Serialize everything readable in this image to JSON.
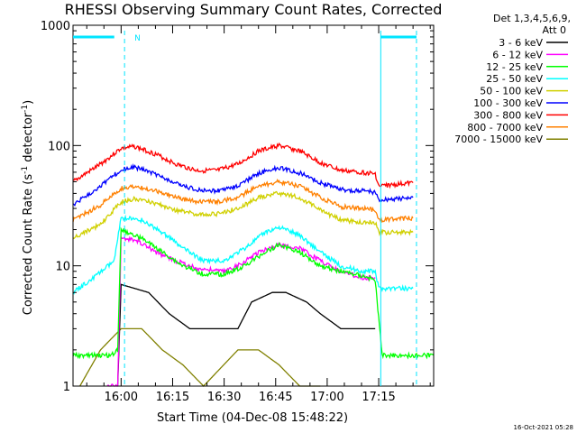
{
  "chart_data": {
    "type": "line",
    "title": "RHESSI Observing Summary Count Rates, Corrected",
    "xlabel": "Start Time (04-Dec-08 15:48:22)",
    "ylabel_main": "Corrected Count Rate (s",
    "ylabel_sup1": "-1",
    "ylabel_mid": " detector",
    "ylabel_sup2": "-1",
    "ylabel_end": ")",
    "yscale": "log",
    "ylim": [
      1,
      1000
    ],
    "xlim_minutes": [
      -14,
      91
    ],
    "y_ticks": [
      {
        "value": 1,
        "label": "1"
      },
      {
        "value": 10,
        "label": "10"
      },
      {
        "value": 100,
        "label": "100"
      },
      {
        "value": 1000,
        "label": "1000"
      }
    ],
    "x_ticks": [
      {
        "minute": 0,
        "label": "16:00"
      },
      {
        "minute": 15,
        "label": "16:15"
      },
      {
        "minute": 30,
        "label": "16:30"
      },
      {
        "minute": 45,
        "label": "16:45"
      },
      {
        "minute": 60,
        "label": "17:00"
      },
      {
        "minute": 75,
        "label": "17:15"
      }
    ],
    "legend": {
      "header1": "Det 1,3,4,5,6,9,",
      "header2": "Att 0",
      "placement": "right"
    },
    "annotation": {
      "label": "N",
      "minute": 6.5
    },
    "timestamp": "16-Oct-2021 05:28",
    "series": [
      {
        "name": "3 - 6 keV",
        "color": "#000000",
        "points": [
          [
            -1,
            1
          ],
          [
            0,
            7
          ],
          [
            8,
            6
          ],
          [
            14,
            4
          ],
          [
            20,
            3
          ],
          [
            30,
            3
          ],
          [
            34,
            3
          ],
          [
            38,
            5
          ],
          [
            44,
            6
          ],
          [
            48,
            6
          ],
          [
            54,
            5
          ],
          [
            58,
            4
          ],
          [
            64,
            3
          ],
          [
            74,
            3
          ]
        ]
      },
      {
        "name": "6 - 12 keV",
        "color": "#ff00ff",
        "points": [
          [
            -4,
            1
          ],
          [
            -3,
            1
          ],
          [
            -1,
            1
          ],
          [
            0,
            17
          ],
          [
            5,
            16
          ],
          [
            10,
            13
          ],
          [
            16,
            11
          ],
          [
            22,
            9.5
          ],
          [
            30,
            9
          ],
          [
            34,
            10
          ],
          [
            40,
            13
          ],
          [
            46,
            15
          ],
          [
            52,
            14
          ],
          [
            58,
            11
          ],
          [
            64,
            9
          ],
          [
            70,
            8
          ],
          [
            74,
            8
          ]
        ]
      },
      {
        "name": "12 - 25 keV",
        "color": "#00ff00",
        "points": [
          [
            -14,
            1.8
          ],
          [
            -3,
            1.8
          ],
          [
            -1,
            2
          ],
          [
            0,
            20
          ],
          [
            6,
            17
          ],
          [
            12,
            13
          ],
          [
            18,
            10
          ],
          [
            24,
            8.5
          ],
          [
            30,
            8.5
          ],
          [
            36,
            10
          ],
          [
            42,
            13
          ],
          [
            46,
            15
          ],
          [
            52,
            13
          ],
          [
            58,
            10
          ],
          [
            64,
            9
          ],
          [
            72,
            8
          ],
          [
            74,
            7.5
          ],
          [
            76,
            1.8
          ],
          [
            91,
            1.8
          ]
        ]
      },
      {
        "name": "25 - 50 keV",
        "color": "#00ffff",
        "points": [
          [
            -14,
            6
          ],
          [
            -8,
            8
          ],
          [
            -2,
            11
          ],
          [
            0,
            25
          ],
          [
            6,
            24
          ],
          [
            12,
            19
          ],
          [
            18,
            14
          ],
          [
            24,
            11
          ],
          [
            30,
            11
          ],
          [
            36,
            14
          ],
          [
            42,
            19
          ],
          [
            46,
            21
          ],
          [
            52,
            18
          ],
          [
            58,
            13
          ],
          [
            64,
            10
          ],
          [
            70,
            9
          ],
          [
            74,
            9
          ],
          [
            75,
            6.5
          ],
          [
            85,
            6.5
          ]
        ]
      },
      {
        "name": "50 - 100 keV",
        "color": "#d0d000",
        "points": [
          [
            -14,
            17
          ],
          [
            -6,
            22
          ],
          [
            0,
            34
          ],
          [
            4,
            36
          ],
          [
            10,
            33
          ],
          [
            16,
            29
          ],
          [
            22,
            27
          ],
          [
            28,
            27
          ],
          [
            34,
            30
          ],
          [
            40,
            37
          ],
          [
            46,
            40
          ],
          [
            52,
            37
          ],
          [
            58,
            29
          ],
          [
            64,
            24
          ],
          [
            70,
            23
          ],
          [
            74,
            23
          ],
          [
            75,
            19
          ],
          [
            85,
            19
          ]
        ]
      },
      {
        "name": "100 - 300 keV",
        "color": "#0000ff",
        "points": [
          [
            -14,
            32
          ],
          [
            -6,
            46
          ],
          [
            0,
            63
          ],
          [
            4,
            66
          ],
          [
            10,
            58
          ],
          [
            16,
            48
          ],
          [
            22,
            43
          ],
          [
            28,
            42
          ],
          [
            34,
            46
          ],
          [
            40,
            59
          ],
          [
            46,
            65
          ],
          [
            52,
            59
          ],
          [
            58,
            49
          ],
          [
            64,
            43
          ],
          [
            70,
            42
          ],
          [
            74,
            41
          ],
          [
            75,
            35
          ],
          [
            85,
            37
          ]
        ]
      },
      {
        "name": "300 - 800 keV",
        "color": "#ff0000",
        "points": [
          [
            -14,
            50
          ],
          [
            -6,
            70
          ],
          [
            0,
            95
          ],
          [
            4,
            98
          ],
          [
            10,
            85
          ],
          [
            16,
            70
          ],
          [
            22,
            62
          ],
          [
            28,
            62
          ],
          [
            34,
            70
          ],
          [
            40,
            90
          ],
          [
            46,
            100
          ],
          [
            52,
            90
          ],
          [
            58,
            72
          ],
          [
            64,
            62
          ],
          [
            70,
            60
          ],
          [
            74,
            58
          ],
          [
            75,
            46
          ],
          [
            85,
            49
          ]
        ]
      },
      {
        "name": "800 - 7000 keV",
        "color": "#ff8000",
        "points": [
          [
            -14,
            24
          ],
          [
            -6,
            32
          ],
          [
            0,
            44
          ],
          [
            4,
            46
          ],
          [
            10,
            42
          ],
          [
            16,
            37
          ],
          [
            22,
            34
          ],
          [
            28,
            34
          ],
          [
            34,
            37
          ],
          [
            40,
            46
          ],
          [
            46,
            50
          ],
          [
            52,
            46
          ],
          [
            58,
            37
          ],
          [
            64,
            31
          ],
          [
            70,
            30
          ],
          [
            74,
            29
          ],
          [
            75,
            24
          ],
          [
            85,
            25
          ]
        ]
      },
      {
        "name": "7000 - 15000 keV",
        "color": "#808000",
        "points": [
          [
            -12,
            1
          ],
          [
            -6,
            2
          ],
          [
            0,
            3
          ],
          [
            6,
            3
          ],
          [
            12,
            2
          ],
          [
            18,
            1.5
          ],
          [
            24,
            1
          ],
          [
            34,
            2
          ],
          [
            40,
            2
          ],
          [
            46,
            1.5
          ],
          [
            52,
            1
          ],
          [
            58,
            1
          ]
        ]
      }
    ]
  }
}
